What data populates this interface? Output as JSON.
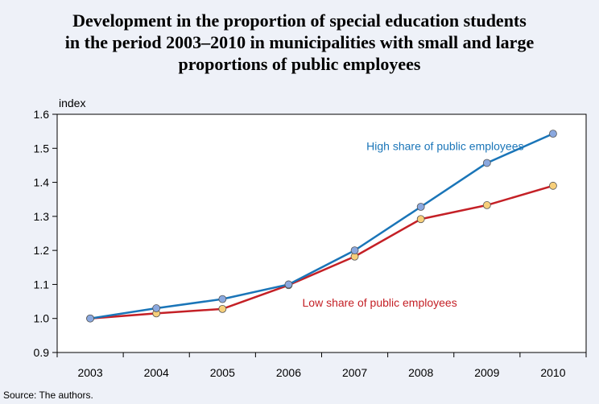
{
  "title_lines": [
    "Development in the proportion of special education students",
    "in the period 2003–2010 in municipalities with small and large",
    "proportions of public employees"
  ],
  "source": "Source: The authors.",
  "colors": {
    "background": "#eef1f8",
    "plot_background": "#ffffff",
    "high_line": "#1a75b8",
    "high_marker": "#8aa8df",
    "low_line": "#c42026",
    "low_marker": "#f7cf7a",
    "high_label": "#1a75b8",
    "low_label": "#c42026"
  },
  "chart_data": {
    "type": "line",
    "title": "Development in the proportion of special education students in the period 2003–2010 in municipalities with small and large proportions of public employees",
    "ylabel": "index",
    "xlabel": "",
    "categories": [
      "2003",
      "2004",
      "2005",
      "2006",
      "2007",
      "2008",
      "2009",
      "2010"
    ],
    "ylim": [
      0.9,
      1.6
    ],
    "yticks": [
      "0.9",
      "1.0",
      "1.1",
      "1.2",
      "1.3",
      "1.4",
      "1.5",
      "1.6"
    ],
    "grid": false,
    "series": [
      {
        "name": "High share of public employees",
        "values": [
          1.0,
          1.03,
          1.057,
          1.1,
          1.2,
          1.328,
          1.457,
          1.543
        ]
      },
      {
        "name": "Low share of public employees",
        "values": [
          1.0,
          1.015,
          1.028,
          1.098,
          1.182,
          1.292,
          1.333,
          1.39
        ]
      }
    ]
  }
}
